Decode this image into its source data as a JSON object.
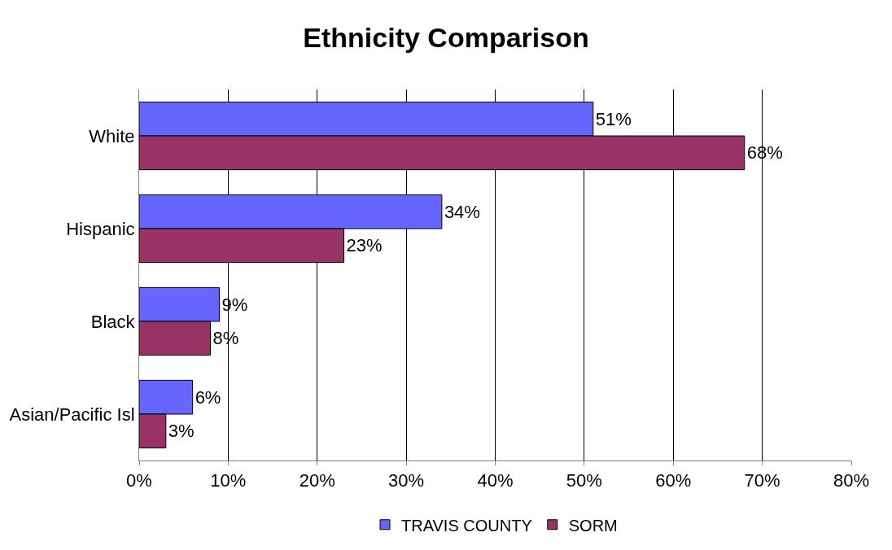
{
  "chart_data": {
    "type": "bar",
    "title": "Ethnicity Comparison",
    "orientation": "horizontal",
    "categories": [
      "White",
      "Hispanic",
      "Black",
      "Asian/Pacific Isl"
    ],
    "series": [
      {
        "name": "TRAVIS COUNTY",
        "color": "#6666ff",
        "values": [
          51,
          34,
          9,
          6
        ],
        "value_labels": [
          "51%",
          "34%",
          "9%",
          "6%"
        ]
      },
      {
        "name": "SORM",
        "color": "#993366",
        "values": [
          68,
          23,
          8,
          3
        ],
        "value_labels": [
          "68%",
          "23%",
          "8%",
          "3%"
        ]
      }
    ],
    "xlim": [
      0,
      80
    ],
    "xticks": [
      {
        "value": 0,
        "label": "0%"
      },
      {
        "value": 10,
        "label": "10%"
      },
      {
        "value": 20,
        "label": "20%"
      },
      {
        "value": 30,
        "label": "30%"
      },
      {
        "value": 40,
        "label": "40%"
      },
      {
        "value": 50,
        "label": "50%"
      },
      {
        "value": 60,
        "label": "60%"
      },
      {
        "value": 70,
        "label": "70%"
      },
      {
        "value": 80,
        "label": "80%"
      }
    ],
    "grid": "x",
    "legend": "bottom"
  }
}
